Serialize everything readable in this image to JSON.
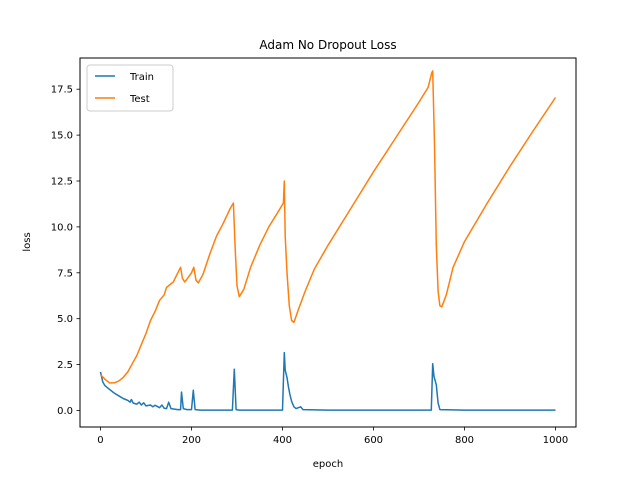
{
  "chart_data": {
    "type": "line",
    "title": "Adam No Dropout Loss",
    "xlabel": "epoch",
    "ylabel": "loss",
    "xlim": [
      -45,
      1045
    ],
    "ylim": [
      -0.9,
      19.2
    ],
    "xticks": [
      0,
      200,
      400,
      600,
      800,
      1000
    ],
    "yticks": [
      0.0,
      2.5,
      5.0,
      7.5,
      10.0,
      12.5,
      15.0,
      17.5
    ],
    "xtick_labels": [
      "0",
      "200",
      "400",
      "600",
      "800",
      "1000"
    ],
    "ytick_labels": [
      "0.0",
      "2.5",
      "5.0",
      "7.5",
      "10.0",
      "12.5",
      "15.0",
      "17.5"
    ],
    "legend_position": "top-left",
    "grid": false,
    "series": [
      {
        "name": "Train",
        "color": "#1f77b4",
        "points": [
          [
            0,
            2.1
          ],
          [
            5,
            1.55
          ],
          [
            10,
            1.35
          ],
          [
            20,
            1.15
          ],
          [
            30,
            0.95
          ],
          [
            40,
            0.8
          ],
          [
            50,
            0.65
          ],
          [
            60,
            0.55
          ],
          [
            65,
            0.45
          ],
          [
            68,
            0.6
          ],
          [
            72,
            0.4
          ],
          [
            80,
            0.35
          ],
          [
            85,
            0.45
          ],
          [
            90,
            0.3
          ],
          [
            95,
            0.42
          ],
          [
            100,
            0.25
          ],
          [
            110,
            0.3
          ],
          [
            115,
            0.2
          ],
          [
            120,
            0.28
          ],
          [
            130,
            0.15
          ],
          [
            135,
            0.3
          ],
          [
            140,
            0.12
          ],
          [
            145,
            0.1
          ],
          [
            150,
            0.45
          ],
          [
            155,
            0.1
          ],
          [
            170,
            0.05
          ],
          [
            176,
            0.05
          ],
          [
            178,
            1.0
          ],
          [
            182,
            0.1
          ],
          [
            190,
            0.05
          ],
          [
            200,
            0.05
          ],
          [
            204,
            1.1
          ],
          [
            208,
            0.05
          ],
          [
            220,
            0.02
          ],
          [
            260,
            0.02
          ],
          [
            290,
            0.02
          ],
          [
            294,
            2.25
          ],
          [
            298,
            0.05
          ],
          [
            305,
            0.02
          ],
          [
            350,
            0.02
          ],
          [
            400,
            0.02
          ],
          [
            404,
            3.15
          ],
          [
            406,
            2.2
          ],
          [
            410,
            1.8
          ],
          [
            413,
            1.3
          ],
          [
            416,
            0.9
          ],
          [
            420,
            0.5
          ],
          [
            425,
            0.2
          ],
          [
            430,
            0.1
          ],
          [
            435,
            0.15
          ],
          [
            440,
            0.2
          ],
          [
            445,
            0.05
          ],
          [
            500,
            0.02
          ],
          [
            600,
            0.02
          ],
          [
            700,
            0.02
          ],
          [
            727,
            0.02
          ],
          [
            730,
            2.55
          ],
          [
            733,
            1.85
          ],
          [
            738,
            1.4
          ],
          [
            742,
            0.4
          ],
          [
            746,
            0.05
          ],
          [
            800,
            0.02
          ],
          [
            900,
            0.02
          ],
          [
            1000,
            0.02
          ]
        ]
      },
      {
        "name": "Test",
        "color": "#ff7f0e",
        "points": [
          [
            0,
            1.95
          ],
          [
            10,
            1.7
          ],
          [
            20,
            1.5
          ],
          [
            30,
            1.5
          ],
          [
            40,
            1.6
          ],
          [
            50,
            1.8
          ],
          [
            60,
            2.1
          ],
          [
            70,
            2.55
          ],
          [
            80,
            3.0
          ],
          [
            90,
            3.6
          ],
          [
            100,
            4.2
          ],
          [
            110,
            4.9
          ],
          [
            120,
            5.4
          ],
          [
            130,
            6.0
          ],
          [
            140,
            6.3
          ],
          [
            145,
            6.7
          ],
          [
            150,
            6.8
          ],
          [
            160,
            7.0
          ],
          [
            170,
            7.5
          ],
          [
            176,
            7.8
          ],
          [
            180,
            7.2
          ],
          [
            185,
            7.0
          ],
          [
            190,
            7.15
          ],
          [
            200,
            7.5
          ],
          [
            205,
            7.8
          ],
          [
            210,
            7.1
          ],
          [
            215,
            6.95
          ],
          [
            225,
            7.4
          ],
          [
            240,
            8.5
          ],
          [
            255,
            9.5
          ],
          [
            270,
            10.2
          ],
          [
            285,
            11.0
          ],
          [
            292,
            11.3
          ],
          [
            296,
            8.8
          ],
          [
            300,
            6.8
          ],
          [
            305,
            6.2
          ],
          [
            315,
            6.6
          ],
          [
            330,
            7.8
          ],
          [
            350,
            9.0
          ],
          [
            370,
            10.0
          ],
          [
            390,
            10.8
          ],
          [
            402,
            11.3
          ],
          [
            404,
            12.5
          ],
          [
            406,
            9.5
          ],
          [
            410,
            7.5
          ],
          [
            415,
            5.7
          ],
          [
            420,
            4.9
          ],
          [
            425,
            4.8
          ],
          [
            435,
            5.5
          ],
          [
            450,
            6.5
          ],
          [
            470,
            7.7
          ],
          [
            500,
            9.0
          ],
          [
            550,
            11.0
          ],
          [
            600,
            13.0
          ],
          [
            650,
            14.9
          ],
          [
            700,
            16.8
          ],
          [
            720,
            17.6
          ],
          [
            728,
            18.4
          ],
          [
            730,
            18.5
          ],
          [
            734,
            14.5
          ],
          [
            738,
            9.0
          ],
          [
            742,
            6.5
          ],
          [
            746,
            5.7
          ],
          [
            750,
            5.65
          ],
          [
            760,
            6.3
          ],
          [
            775,
            7.8
          ],
          [
            800,
            9.2
          ],
          [
            850,
            11.3
          ],
          [
            900,
            13.3
          ],
          [
            950,
            15.2
          ],
          [
            1000,
            17.05
          ]
        ]
      }
    ]
  }
}
